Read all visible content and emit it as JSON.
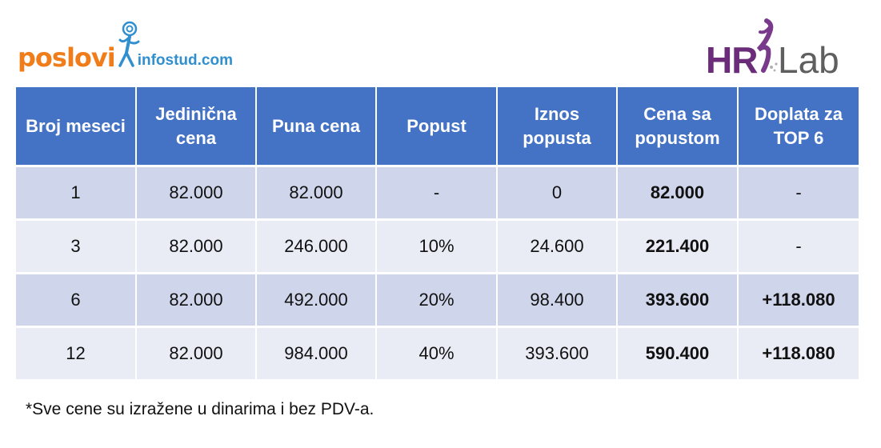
{
  "logos": {
    "left_brand": "poslovi",
    "left_domain": "infostud.com",
    "right_brand_hr": "HR",
    "right_brand_lab": "Lab"
  },
  "table": {
    "headers": [
      "Broj meseci",
      "Jedinična cena",
      "Puna cena",
      "Popust",
      "Iznos popusta",
      "Cena sa popustom",
      "Doplata za TOP 6"
    ],
    "rows": [
      [
        "1",
        "82.000",
        "82.000",
        "-",
        "0",
        "82.000",
        "-"
      ],
      [
        "3",
        "82.000",
        "246.000",
        "10%",
        "24.600",
        "221.400",
        "-"
      ],
      [
        "6",
        "82.000",
        "492.000",
        "20%",
        "98.400",
        "393.600",
        "+118.080"
      ],
      [
        "12",
        "82.000",
        "984.000",
        "40%",
        "393.600",
        "590.400",
        "+118.080"
      ]
    ]
  },
  "footnote": "*Sve cene su izražene u dinarima i bez PDV-a.",
  "colors": {
    "header_bg": "#4472c4",
    "row_odd": "#cfd5ea",
    "row_even": "#e9ebf5",
    "brand_orange": "#f07d1a",
    "brand_blue": "#2f8fcf",
    "brand_purple": "#6b2d7a"
  }
}
